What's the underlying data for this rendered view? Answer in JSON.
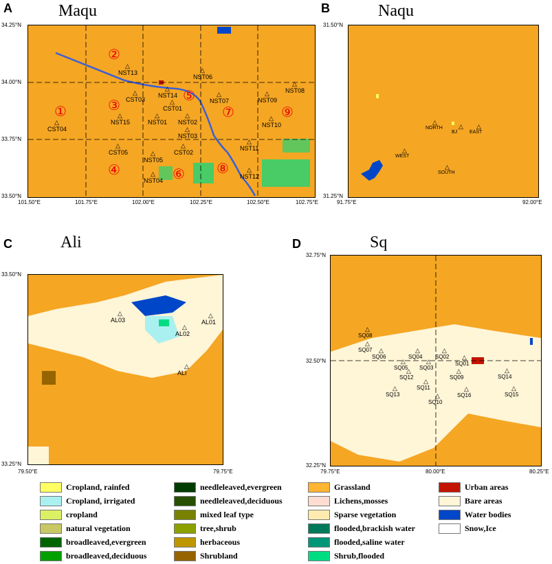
{
  "panels": {
    "a": {
      "letter": "A",
      "title": "Maqu",
      "y_ticks": [
        "34.25°N",
        "34.00°N",
        "33.75°N",
        "33.50°N"
      ],
      "x_ticks": [
        "101.50°E",
        "101.75°E",
        "102.00°E",
        "102.25°E",
        "102.50°E",
        "102.75°E"
      ],
      "stations": [
        "NST13",
        "NST06",
        "NST14",
        "CST03",
        "NST07",
        "NST08",
        "CST01",
        "NST09",
        "NST15",
        "NST01",
        "NST02",
        "NST10",
        "CST04",
        "NST03",
        "CST05",
        "CST02",
        "NST11",
        "NST05",
        "NST04",
        "NST12"
      ],
      "regions": [
        "①",
        "②",
        "③",
        "④",
        "⑤",
        "⑥",
        "⑦",
        "⑧",
        "⑨"
      ]
    },
    "b": {
      "letter": "B",
      "title": "Naqu",
      "y_ticks": [
        "31.50°N",
        "31.25°N"
      ],
      "x_ticks": [
        "91.75°E",
        "92.00°E"
      ],
      "stations": [
        "NORTH",
        "BJ",
        "EAST",
        "WEST",
        "SOUTH"
      ]
    },
    "c": {
      "letter": "C",
      "title": "Ali",
      "y_ticks": [
        "33.50°N",
        "33.25°N"
      ],
      "x_ticks": [
        "79.50°E",
        "79.75°E"
      ],
      "stations": [
        "AL03",
        "AL02",
        "AL01",
        "ALI"
      ]
    },
    "d": {
      "letter": "D",
      "title": "Sq",
      "y_ticks": [
        "32.75°N",
        "32.50°N",
        "32.25°N"
      ],
      "x_ticks": [
        "79.75°E",
        "80.00°E",
        "80.25°E"
      ],
      "stations": [
        "SQ08",
        "SQ07",
        "SQ06",
        "SQ05",
        "SQ04",
        "SQ03",
        "SQ02",
        "SQ01",
        "SQ12",
        "SQ09",
        "SQ14",
        "SQ11",
        "SQ13",
        "SQ10",
        "SQ16",
        "SQ15"
      ]
    }
  },
  "legend": [
    {
      "label": "Cropland, rainfed",
      "color": "#ffff64"
    },
    {
      "label": "Cropland, irrigated",
      "color": "#aaf0f0"
    },
    {
      "label": "cropland",
      "color": "#dcf064"
    },
    {
      "label": "natural vegetation",
      "color": "#c8c864"
    },
    {
      "label": "broadleaved,evergreen",
      "color": "#006400"
    },
    {
      "label": "broadleaved,deciduous",
      "color": "#00a000"
    },
    {
      "label": "needleleaved,evergreen",
      "color": "#003c00"
    },
    {
      "label": "needleleaved,deciduous",
      "color": "#285000"
    },
    {
      "label": "mixed leaf type",
      "color": "#788200"
    },
    {
      "label": "tree,shrub",
      "color": "#8ca000"
    },
    {
      "label": "herbaceous",
      "color": "#be9600"
    },
    {
      "label": "Shrubland",
      "color": "#966400"
    },
    {
      "label": "Grassland",
      "color": "#ffb432"
    },
    {
      "label": "Lichens,mosses",
      "color": "#ffdcd2"
    },
    {
      "label": "Sparse vegetation",
      "color": "#ffebaf"
    },
    {
      "label": "flooded,brackish water",
      "color": "#00785a"
    },
    {
      "label": "flooded,saline water",
      "color": "#009678"
    },
    {
      "label": "Shrub,flooded",
      "color": "#00dc82"
    },
    {
      "label": "Urban areas",
      "color": "#c31400"
    },
    {
      "label": "Bare areas",
      "color": "#fff5d7"
    },
    {
      "label": "Water bodies",
      "color": "#0046c8"
    },
    {
      "label": "Snow,Ice",
      "color": "#ffffff"
    }
  ]
}
